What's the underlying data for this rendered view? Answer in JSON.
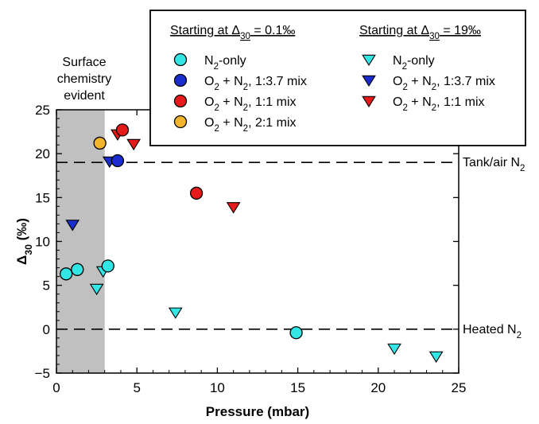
{
  "chart_data": {
    "type": "scatter",
    "xlabel": "Pressure (mbar)",
    "ylabel": "Δ30 (‰)",
    "xlim": [
      0,
      25
    ],
    "ylim": [
      -5,
      25
    ],
    "xticks": [
      0,
      5,
      10,
      15,
      20,
      25
    ],
    "yticks": [
      -5,
      0,
      5,
      10,
      15,
      20,
      25
    ],
    "legend_position": "top-right",
    "legend_groups": [
      {
        "heading": "Starting at Δ30 = 0.1‰",
        "marker": "circle"
      },
      {
        "heading": "Starting at Δ30 = 19‰",
        "marker": "triangle-down"
      }
    ],
    "series": [
      {
        "name": "N2-only",
        "group": 0,
        "marker": "circle",
        "color": "#33e6e6",
        "points": [
          [
            0.6,
            6.3
          ],
          [
            1.3,
            6.8
          ],
          [
            3.2,
            7.2
          ],
          [
            14.9,
            -0.4
          ]
        ]
      },
      {
        "name": "O2 + N2, 1:3.7 mix",
        "group": 0,
        "marker": "circle",
        "color": "#1a2ccc",
        "points": [
          [
            3.8,
            19.2
          ]
        ]
      },
      {
        "name": "O2 + N2, 1:1 mix",
        "group": 0,
        "marker": "circle",
        "color": "#e61a1a",
        "points": [
          [
            4.1,
            22.7
          ],
          [
            8.7,
            15.5
          ]
        ]
      },
      {
        "name": "O2 + N2, 2:1 mix",
        "group": 0,
        "marker": "circle",
        "color": "#f5b42e",
        "points": [
          [
            2.7,
            21.2
          ]
        ]
      },
      {
        "name": "N2-only",
        "group": 1,
        "marker": "triangle-down",
        "color": "#33e6e6",
        "points": [
          [
            2.5,
            4.6
          ],
          [
            2.9,
            6.6
          ],
          [
            7.4,
            1.9
          ],
          [
            21.0,
            -2.2
          ],
          [
            23.6,
            -3.1
          ]
        ]
      },
      {
        "name": "O2 + N2, 1:3.7 mix",
        "group": 1,
        "marker": "triangle-down",
        "color": "#1a2ccc",
        "points": [
          [
            1.0,
            11.9
          ],
          [
            3.3,
            19.1
          ]
        ]
      },
      {
        "name": "O2 + N2, 1:1 mix",
        "group": 1,
        "marker": "triangle-down",
        "color": "#e61a1a",
        "points": [
          [
            3.8,
            22.2
          ],
          [
            4.8,
            21.1
          ],
          [
            11.0,
            13.9
          ]
        ]
      }
    ],
    "reference_lines": [
      {
        "y": 19,
        "label": "Tank/air N2"
      },
      {
        "y": 0,
        "label": "Heated N2"
      }
    ],
    "shaded_region": {
      "x": [
        0,
        3
      ],
      "label": "Surface chemistry evident",
      "color": "#c0c0c0"
    }
  }
}
